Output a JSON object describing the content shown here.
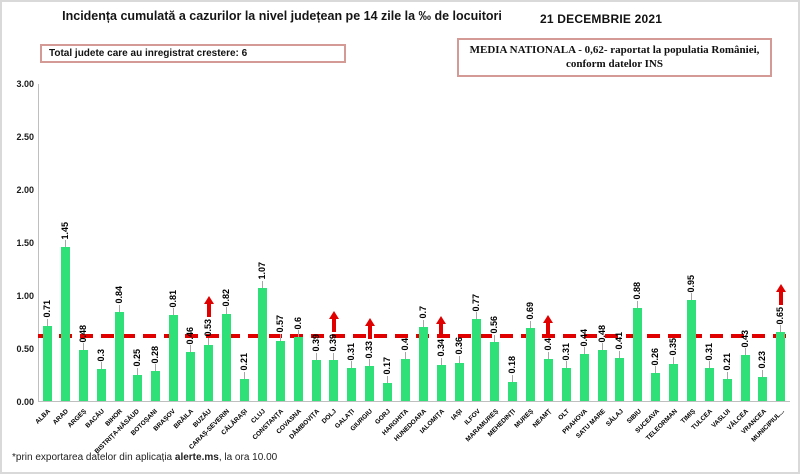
{
  "header": {
    "date": "21 DECEMBRIE 2021"
  },
  "growth_box": {
    "text": "Total judete care au inregistrat crestere: 6"
  },
  "media_box": {
    "line1": "MEDIA NATIONALA - 0,62-  raportat la populatia  României,",
    "line2": "conform datelor INS"
  },
  "footer": {
    "prefix": "*prin exportarea  datelor din aplicația ",
    "app": "alerte.ms",
    "suffix": ", la ora 10.00"
  },
  "chart_data": {
    "type": "bar",
    "title": "Incidența cumulată a cazurilor la nivel județean pe 14 zile la ‰ de locuitori",
    "xlabel": "",
    "ylabel": "",
    "ylim": [
      0,
      3.0
    ],
    "yticks": [
      "3.00",
      "2.50",
      "2.00",
      "1.50",
      "1.00",
      "0.50",
      "0.00"
    ],
    "grid": false,
    "legend": false,
    "bar_color": "#2ee077",
    "accent_red": "#e00000",
    "categories": [
      "ALBA",
      "ARAD",
      "ARGEȘ",
      "BACĂU",
      "BIHOR",
      "BISTRIȚA-NĂSĂUD",
      "BOTOȘANI",
      "BRAȘOV",
      "BRĂILA",
      "BUZĂU",
      "CARAȘ-SEVERIN",
      "CĂLĂRAȘI",
      "CLUJ",
      "CONSTANȚA",
      "COVASNA",
      "DÂMBOVIȚA",
      "DOLJ",
      "GALAȚI",
      "GIURGIU",
      "GORJ",
      "HARGHITA",
      "HUNEDOARA",
      "IALOMIȚA",
      "IAȘI",
      "ILFOV",
      "MARAMUREȘ",
      "MEHEDINȚI",
      "MUREȘ",
      "NEAMȚ",
      "OLT",
      "PRAHOVA",
      "SATU MARE",
      "SĂLAJ",
      "SIBIU",
      "SUCEAVA",
      "TELEORMAN",
      "TIMIȘ",
      "TULCEA",
      "VASLUI",
      "VÂLCEA",
      "VRANCEA",
      "MUNICIPIUL..."
    ],
    "values": [
      0.71,
      1.45,
      0.48,
      0.3,
      0.84,
      0.25,
      0.28,
      0.81,
      0.46,
      0.53,
      0.82,
      0.21,
      1.07,
      0.57,
      0.6,
      0.39,
      0.39,
      0.31,
      0.33,
      0.17,
      0.4,
      0.7,
      0.34,
      0.36,
      0.77,
      0.56,
      0.18,
      0.69,
      0.4,
      0.31,
      0.44,
      0.48,
      0.41,
      0.88,
      0.26,
      0.35,
      0.95,
      0.31,
      0.21,
      0.43,
      0.23,
      0.65
    ],
    "value_labels": [
      "0.71",
      "1.45",
      "0.48",
      "0.3",
      "0.84",
      "0.25",
      "0.28",
      "0.81",
      "0.46",
      "0.53",
      "0.82",
      "0.21",
      "1.07",
      "0.57",
      "0.6",
      "0.39",
      "0.39",
      "0.31",
      "0.33",
      "0.17",
      "0.4",
      "0.7",
      "0.34",
      "0.36",
      "0.77",
      "0.56",
      "0.18",
      "0.69",
      "0.4",
      "0.31",
      "0.44",
      "0.48",
      "0.41",
      "0.88",
      "0.26",
      "0.35",
      "0.95",
      "0.31",
      "0.21",
      "0.43",
      "0.23",
      "0.65"
    ],
    "increase_indices": [
      9,
      16,
      18,
      22,
      28,
      41
    ],
    "reference_line": {
      "value": 0.62,
      "style": "dashed",
      "color": "#e00000"
    }
  }
}
